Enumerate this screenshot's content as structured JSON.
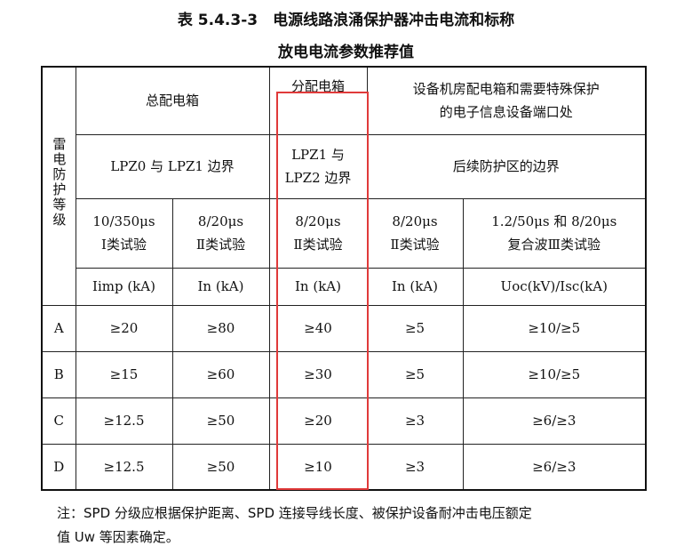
{
  "title": {
    "line1": "表 5.4.3-3　电源线路浪涌保护器冲击电流和标称",
    "line2": "放电电流参数推荐值"
  },
  "table": {
    "grade_header": "雷电防护等级",
    "group_headers": [
      "总配电箱",
      "分配电箱",
      "设备机房配电箱和需要特殊保护的电子信息设备端口处"
    ],
    "boundaries": [
      "LPZ0 与 LPZ1 边界",
      "LPZ1 与 LPZ2 边界",
      "后续防护区的边界"
    ],
    "tests": [
      {
        "wave": "10/350μs",
        "cls": "Ⅰ类试验"
      },
      {
        "wave": "8/20μs",
        "cls": "Ⅱ类试验"
      },
      {
        "wave": "8/20μs",
        "cls": "Ⅱ类试验"
      },
      {
        "wave": "8/20μs",
        "cls": "Ⅱ类试验"
      },
      {
        "wave": "1.2/50μs 和 8/20μs",
        "cls": "复合波Ⅲ类试验"
      }
    ],
    "units": [
      "Iimp (kA)",
      "In (kA)",
      "In (kA)",
      "In (kA)",
      "Uoc(kV)/Isc(kA)"
    ],
    "rows": [
      {
        "grade": "A",
        "v": [
          "≥20",
          "≥80",
          "≥40",
          "≥5",
          "≥10/≥5"
        ]
      },
      {
        "grade": "B",
        "v": [
          "≥15",
          "≥60",
          "≥30",
          "≥5",
          "≥10/≥5"
        ]
      },
      {
        "grade": "C",
        "v": [
          "≥12.5",
          "≥50",
          "≥20",
          "≥3",
          "≥6/≥3"
        ]
      },
      {
        "grade": "D",
        "v": [
          "≥12.5",
          "≥50",
          "≥10",
          "≥3",
          "≥6/≥3"
        ]
      }
    ]
  },
  "note": {
    "line1": "注：SPD 分级应根据保护距离、SPD 连接导线长度、被保护设备耐冲击电压额定",
    "line2": "值 Uw 等因素确定。"
  },
  "highlight_color": "#e03a3a"
}
